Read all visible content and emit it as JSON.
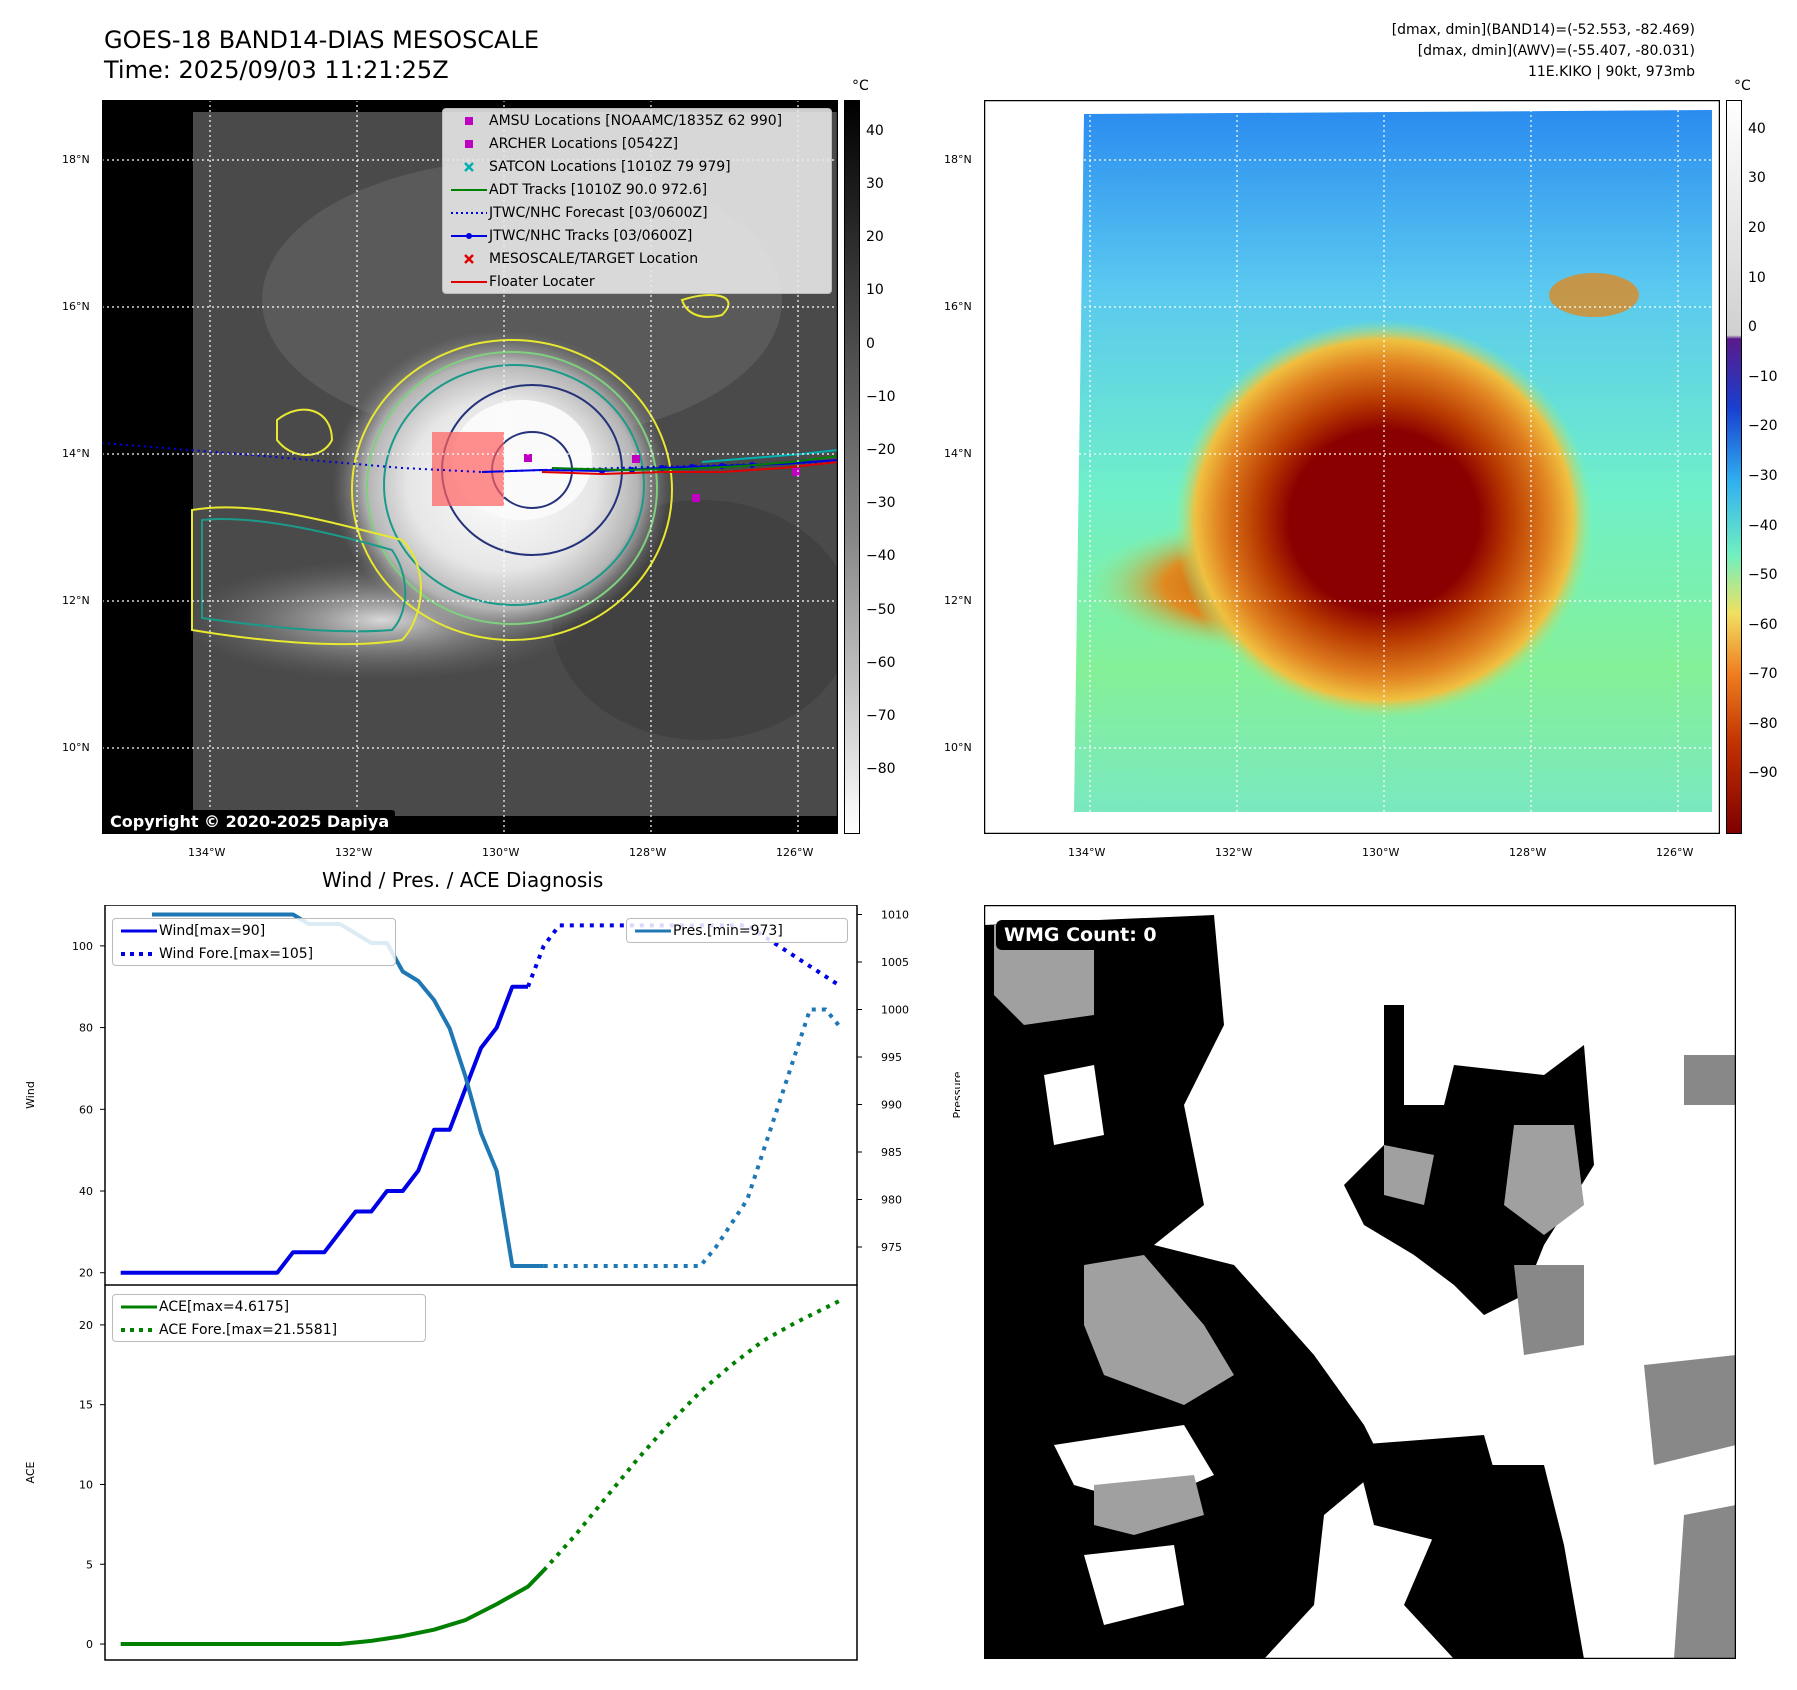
{
  "header": {
    "title_line1": "GOES-18 BAND14-DIAS MESOSCALE",
    "title_line2": "Time: 2025/09/03 11:21:25Z",
    "info_line1": "[dmax, dmin](BAND14)=(-52.553, -82.469)",
    "info_line2": "[dmax, dmin](AWV)=(-55.407, -80.031)",
    "info_line3": "11E.KIKO | 90kt, 973mb"
  },
  "map_axes": {
    "lon_labels": [
      "134°W",
      "132°W",
      "130°W",
      "128°W",
      "126°W"
    ],
    "lat_labels": [
      "18°N",
      "16°N",
      "14°N",
      "12°N",
      "10°N"
    ]
  },
  "left_map": {
    "colorbar_unit": "°C",
    "colorbar_ticks": [
      "40",
      "30",
      "20",
      "10",
      "0",
      "−10",
      "−20",
      "−30",
      "−40",
      "−50",
      "−60",
      "−70",
      "−80"
    ],
    "copyright": "Copyright © 2020-2025 Dapiya",
    "legend": [
      {
        "label": "AMSU Locations [NOAAMC/1835Z 62 990]",
        "symbol": "square",
        "color": "#c000c0"
      },
      {
        "label": "ARCHER Locations [0542Z]",
        "symbol": "square",
        "color": "#c000c0"
      },
      {
        "label": "SATCON Locations [1010Z 79 979]",
        "symbol": "x",
        "color": "#00b0b0"
      },
      {
        "label": "ADT Tracks [1010Z 90.0 972.6]",
        "symbol": "line",
        "color": "#008000"
      },
      {
        "label": "JTWC/NHC Forecast [03/0600Z]",
        "symbol": "dotted",
        "color": "#0000e0"
      },
      {
        "label": "JTWC/NHC Tracks [03/0600Z]",
        "symbol": "line-dot",
        "color": "#0000e0"
      },
      {
        "label": "MESOSCALE/TARGET Location",
        "symbol": "x",
        "color": "#e00000"
      },
      {
        "label": "Floater Locater",
        "symbol": "line",
        "color": "#e00000"
      }
    ]
  },
  "right_map": {
    "colorbar_unit": "°C",
    "colorbar_ticks": [
      "40",
      "30",
      "20",
      "10",
      "0",
      "−10",
      "−20",
      "−30",
      "−40",
      "−50",
      "−60",
      "−70",
      "−80",
      "−90"
    ]
  },
  "chart_data": [
    {
      "type": "line",
      "title": "Wind / Pres. / ACE Diagnosis",
      "ylabel": "Wind",
      "ylabel_right": "Pressure",
      "ylim": [
        17,
        110
      ],
      "ylim_right": [
        971,
        1011
      ],
      "yticks": [
        20,
        40,
        60,
        80,
        100
      ],
      "yticks_right": [
        975,
        980,
        985,
        990,
        995,
        1000,
        1005,
        1010
      ],
      "legend_left": [
        "Wind[max=90]",
        "Wind Fore.[max=105]"
      ],
      "legend_right": [
        "Pres.[min=973]"
      ],
      "series": [
        {
          "name": "Wind",
          "axis": "left",
          "color": "#0000e6",
          "style": "solid",
          "x": [
            0,
            1,
            2,
            3,
            4,
            5,
            6,
            7,
            8,
            9,
            10,
            11,
            12,
            13,
            14,
            15,
            16,
            17,
            18,
            19,
            20,
            21,
            22,
            23,
            24,
            25,
            26
          ],
          "values": [
            20,
            20,
            20,
            20,
            20,
            20,
            20,
            20,
            20,
            20,
            20,
            25,
            25,
            25,
            30,
            35,
            35,
            40,
            40,
            45,
            55,
            55,
            65,
            75,
            80,
            90,
            90
          ]
        },
        {
          "name": "Wind Fore.",
          "axis": "left",
          "color": "#0000e6",
          "style": "dotted",
          "x": [
            26,
            27,
            28,
            30,
            32,
            34,
            36,
            38,
            40,
            42,
            44,
            46
          ],
          "values": [
            90,
            100,
            105,
            105,
            105,
            105,
            105,
            105,
            105,
            100,
            95,
            90
          ]
        },
        {
          "name": "Pres.",
          "axis": "right",
          "color": "#1f77b4",
          "style": "solid",
          "x": [
            2,
            4,
            6,
            8,
            10,
            11,
            12,
            13,
            14,
            15,
            16,
            17,
            18,
            19,
            20,
            21,
            22,
            23,
            24,
            25,
            26,
            27
          ],
          "values": [
            1010,
            1010,
            1010,
            1010,
            1010,
            1010,
            1009,
            1009,
            1009,
            1008,
            1007,
            1007,
            1004,
            1003,
            1001,
            998,
            993,
            987,
            983,
            973,
            973,
            973
          ]
        },
        {
          "name": "Pres. Fore.",
          "axis": "right",
          "color": "#1f77b4",
          "style": "dotted",
          "x": [
            27,
            29,
            31,
            33,
            35,
            37,
            38,
            40,
            41,
            42,
            43,
            44,
            45,
            46
          ],
          "values": [
            973,
            973,
            973,
            973,
            973,
            973,
            975,
            980,
            985,
            990,
            995,
            1000,
            1000,
            998
          ]
        }
      ]
    },
    {
      "type": "line",
      "ylabel": "ACE",
      "ylim": [
        -1,
        22.5
      ],
      "yticks": [
        0,
        5,
        10,
        15,
        20
      ],
      "legend": [
        "ACE[max=4.6175]",
        "ACE Fore.[max=21.5581]"
      ],
      "series": [
        {
          "name": "ACE",
          "color": "#008000",
          "style": "solid",
          "x": [
            0,
            4,
            8,
            12,
            14,
            16,
            18,
            20,
            22,
            24,
            26,
            27
          ],
          "values": [
            0,
            0,
            0,
            0,
            0,
            0.2,
            0.5,
            0.9,
            1.5,
            2.5,
            3.6,
            4.6175
          ]
        },
        {
          "name": "ACE Fore.",
          "color": "#008000",
          "style": "dotted",
          "x": [
            27,
            29,
            31,
            33,
            35,
            37,
            39,
            41,
            43,
            46
          ],
          "values": [
            4.6175,
            6.8,
            9.2,
            11.6,
            13.8,
            15.8,
            17.5,
            19.0,
            20.1,
            21.5581
          ]
        }
      ]
    }
  ],
  "wmg": {
    "label": "WMG Count: 0"
  }
}
